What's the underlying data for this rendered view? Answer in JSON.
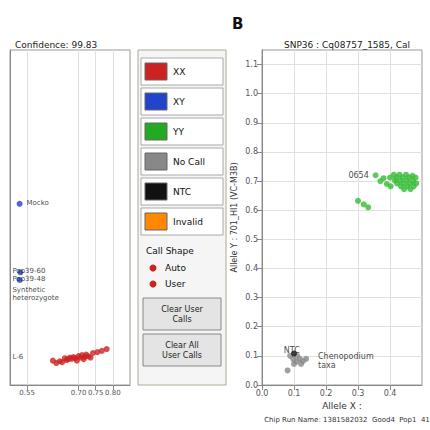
{
  "chart_data": [
    {
      "type": "scatter",
      "title": "Confidence: 99.83",
      "xlim": [
        0.5,
        0.85
      ],
      "ylim": [
        -0.05,
        1.05
      ],
      "xticks": [
        0.55,
        {
          "value": 0.7,
          "label": "0.70"
        },
        0.75,
        {
          "value": 0.8,
          "label": "0.80"
        }
      ],
      "tick_labels": "x",
      "grid": true,
      "series": [
        {
          "name": "XX",
          "color": "#cc2222",
          "values": [
            [
              0.625,
              0.03
            ],
            [
              0.635,
              0.022
            ],
            [
              0.645,
              0.028
            ],
            [
              0.652,
              0.025
            ],
            [
              0.66,
              0.038
            ],
            [
              0.665,
              0.032
            ],
            [
              0.67,
              0.035
            ],
            [
              0.675,
              0.04
            ],
            [
              0.68,
              0.036
            ],
            [
              0.685,
              0.042
            ],
            [
              0.69,
              0.038
            ],
            [
              0.695,
              0.03
            ],
            [
              0.7,
              0.045
            ],
            [
              0.705,
              0.04
            ],
            [
              0.71,
              0.048
            ],
            [
              0.715,
              0.035
            ],
            [
              0.718,
              0.042
            ],
            [
              0.722,
              0.05
            ],
            [
              0.728,
              0.044
            ],
            [
              0.735,
              0.04
            ],
            [
              0.742,
              0.055
            ],
            [
              0.755,
              0.058
            ],
            [
              0.768,
              0.062
            ],
            [
              0.782,
              0.068
            ]
          ]
        },
        {
          "name": "XY",
          "color": "#2244cc",
          "values": [
            [
              0.528,
              0.545
            ],
            [
              0.53,
              0.32
            ],
            [
              0.528,
              0.295
            ]
          ]
        }
      ],
      "annotations": [
        {
          "text": "Mocko",
          "x": 0.548,
          "y": 0.548
        },
        {
          "text": "Pop39-60",
          "x": 0.507,
          "y": 0.325
        },
        {
          "text": "Pop39-48",
          "x": 0.507,
          "y": 0.298
        },
        {
          "text": "Synthetic\nheterozygote",
          "x": 0.507,
          "y": 0.248
        },
        {
          "text": "L-6",
          "x": 0.507,
          "y": 0.043
        }
      ]
    },
    {
      "type": "legend",
      "categories": [
        "XX",
        "XY",
        "YY",
        "No Call",
        "NTC",
        "Invalid"
      ],
      "colors": [
        "#cc2222",
        "#2244cc",
        "#22aa22",
        "#888888",
        "#111111",
        "#ff8800"
      ],
      "annotations": [
        {
          "text": "Call Shape"
        },
        {
          "text": "Auto",
          "marker": "circle",
          "color": "#cc2222"
        },
        {
          "text": "User",
          "marker": "circle",
          "color": "#cc2222"
        },
        {
          "text": "Clear User\nCalls"
        },
        {
          "text": "Clear All\nUser Calls"
        }
      ]
    },
    {
      "type": "scatter",
      "title": "SNP36 : Cq08757_1585, Cal",
      "subtitle": "Chip Run Name: 1381582032  Good4  Pop1  41",
      "xlabel": "Allele X :",
      "ylabel": "Allele Y : 701_HI1 (VC-M3B)",
      "xlim": [
        0.0,
        0.5
      ],
      "ylim": [
        0.0,
        1.15
      ],
      "xticks": [
        {
          "value": 0.0,
          "label": "0.0"
        },
        0.1,
        0.2,
        0.3,
        0.4
      ],
      "yticks": [
        {
          "value": 0.0,
          "label": "0.0"
        },
        0.1,
        0.2,
        0.3,
        0.4,
        0.5,
        0.6,
        0.7,
        0.8,
        0.9,
        {
          "value": 1.0,
          "label": "1.0"
        },
        1.1
      ],
      "grid": true,
      "series": [
        {
          "name": "YY",
          "color": "#33bb33",
          "values": [
            [
              0.355,
              0.72
            ],
            [
              0.37,
              0.7
            ],
            [
              0.38,
              0.71
            ],
            [
              0.39,
              0.69
            ],
            [
              0.4,
              0.712
            ],
            [
              0.402,
              0.682
            ],
            [
              0.412,
              0.722
            ],
            [
              0.415,
              0.702
            ],
            [
              0.42,
              0.712
            ],
            [
              0.422,
              0.692
            ],
            [
              0.43,
              0.722
            ],
            [
              0.432,
              0.702
            ],
            [
              0.434,
              0.682
            ],
            [
              0.44,
              0.712
            ],
            [
              0.442,
              0.692
            ],
            [
              0.444,
              0.672
            ],
            [
              0.45,
              0.722
            ],
            [
              0.452,
              0.702
            ],
            [
              0.454,
              0.682
            ],
            [
              0.46,
              0.712
            ],
            [
              0.462,
              0.692
            ],
            [
              0.464,
              0.672
            ],
            [
              0.47,
              0.718
            ],
            [
              0.472,
              0.7
            ],
            [
              0.474,
              0.682
            ],
            [
              0.48,
              0.712
            ],
            [
              0.482,
              0.692
            ],
            [
              0.3,
              0.632
            ],
            [
              0.318,
              0.62
            ],
            [
              0.332,
              0.61
            ]
          ]
        },
        {
          "name": "No Call",
          "color": "#888888",
          "values": [
            [
              0.088,
              0.1
            ],
            [
              0.098,
              0.088
            ],
            [
              0.1,
              0.072
            ],
            [
              0.108,
              0.08
            ],
            [
              0.11,
              0.1
            ],
            [
              0.118,
              0.09
            ],
            [
              0.122,
              0.072
            ],
            [
              0.128,
              0.082
            ],
            [
              0.08,
              0.05
            ],
            [
              0.138,
              0.09
            ]
          ]
        },
        {
          "name": "NTC",
          "color": "#111111",
          "values": [
            [
              0.1,
              0.108
            ]
          ]
        }
      ],
      "annotations": [
        {
          "text": "B"
        },
        {
          "text": "0654",
          "x": 0.27,
          "y": 0.718
        },
        {
          "text": "NTC",
          "x": 0.068,
          "y": 0.118
        },
        {
          "text": "Chenopodium\ntaxa",
          "x": 0.175,
          "y": 0.082
        }
      ]
    }
  ]
}
